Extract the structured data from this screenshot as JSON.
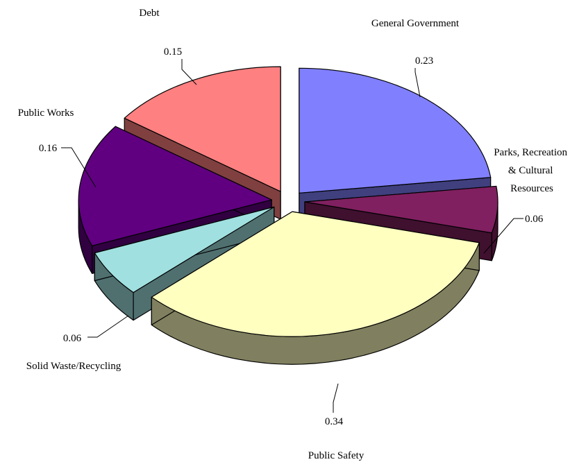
{
  "chart_data": {
    "type": "pie",
    "style": "3d-exploded",
    "title": "",
    "legend": "none",
    "slices": [
      {
        "category": "General Government",
        "value": 0.23,
        "value_label": "0.23",
        "color": "#8080ff",
        "side_color": "#40407f"
      },
      {
        "category": "Parks, Recreation & Cultural Resources",
        "category_lines": [
          "Parks, Recreation",
          "& Cultural",
          "Resources"
        ],
        "value": 0.06,
        "value_label": "0.06",
        "color": "#802060",
        "side_color": "#40102f"
      },
      {
        "category": "Public Safety",
        "value": 0.34,
        "value_label": "0.34",
        "color": "#ffffc0",
        "side_color": "#808060"
      },
      {
        "category": "Solid Waste/Recycling",
        "value": 0.06,
        "value_label": "0.06",
        "color": "#a0e0e0",
        "side_color": "#507070"
      },
      {
        "category": "Public Works",
        "value": 0.16,
        "value_label": "0.16",
        "color": "#600080",
        "side_color": "#300040"
      },
      {
        "category": "Debt",
        "value": 0.15,
        "value_label": "0.15",
        "color": "#ff8080",
        "side_color": "#804040"
      }
    ]
  }
}
